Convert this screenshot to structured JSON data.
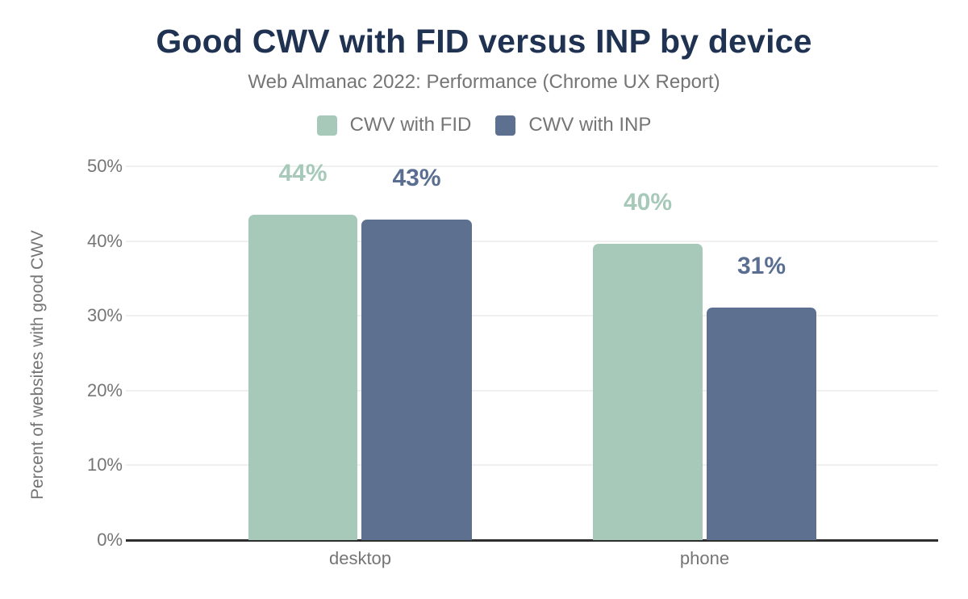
{
  "header": {
    "title": "Good CWV with FID versus INP by device",
    "subtitle": "Web Almanac 2022: Performance (Chrome UX Report)"
  },
  "chart_data": {
    "type": "bar",
    "title": "Good CWV with FID versus INP by device",
    "subtitle": "Web Almanac 2022: Performance (Chrome UX Report)",
    "categories": [
      "desktop",
      "phone"
    ],
    "series": [
      {
        "name": "CWV with FID",
        "values": [
          44,
          40
        ],
        "data_labels": [
          "44%",
          "40%"
        ],
        "color": "#a6c9b9",
        "label_color": "#a6c9b9"
      },
      {
        "name": "CWV with INP",
        "values": [
          43,
          31
        ],
        "data_labels": [
          "43%",
          "31%"
        ],
        "color": "#5d7090",
        "label_color": "#5a6e91"
      }
    ],
    "rendered_bar_heights_pct": [
      [
        43.5,
        42.9
      ],
      [
        39.6,
        31.1
      ]
    ],
    "xlabel": "",
    "ylabel": "Percent of websites with good CWV",
    "ylim": [
      0,
      50
    ],
    "ytick_values": [
      0,
      10,
      20,
      30,
      40,
      50
    ],
    "ytick_labels": [
      "0%",
      "10%",
      "20%",
      "30%",
      "40%",
      "50%"
    ],
    "grid": "horizontal",
    "legend_position": "top"
  },
  "colors": {
    "title_text": "#1f3251",
    "muted_text": "#757575",
    "gridline": "#f0f0f0",
    "axis_line": "#2e2e2e",
    "background": "#ffffff"
  }
}
